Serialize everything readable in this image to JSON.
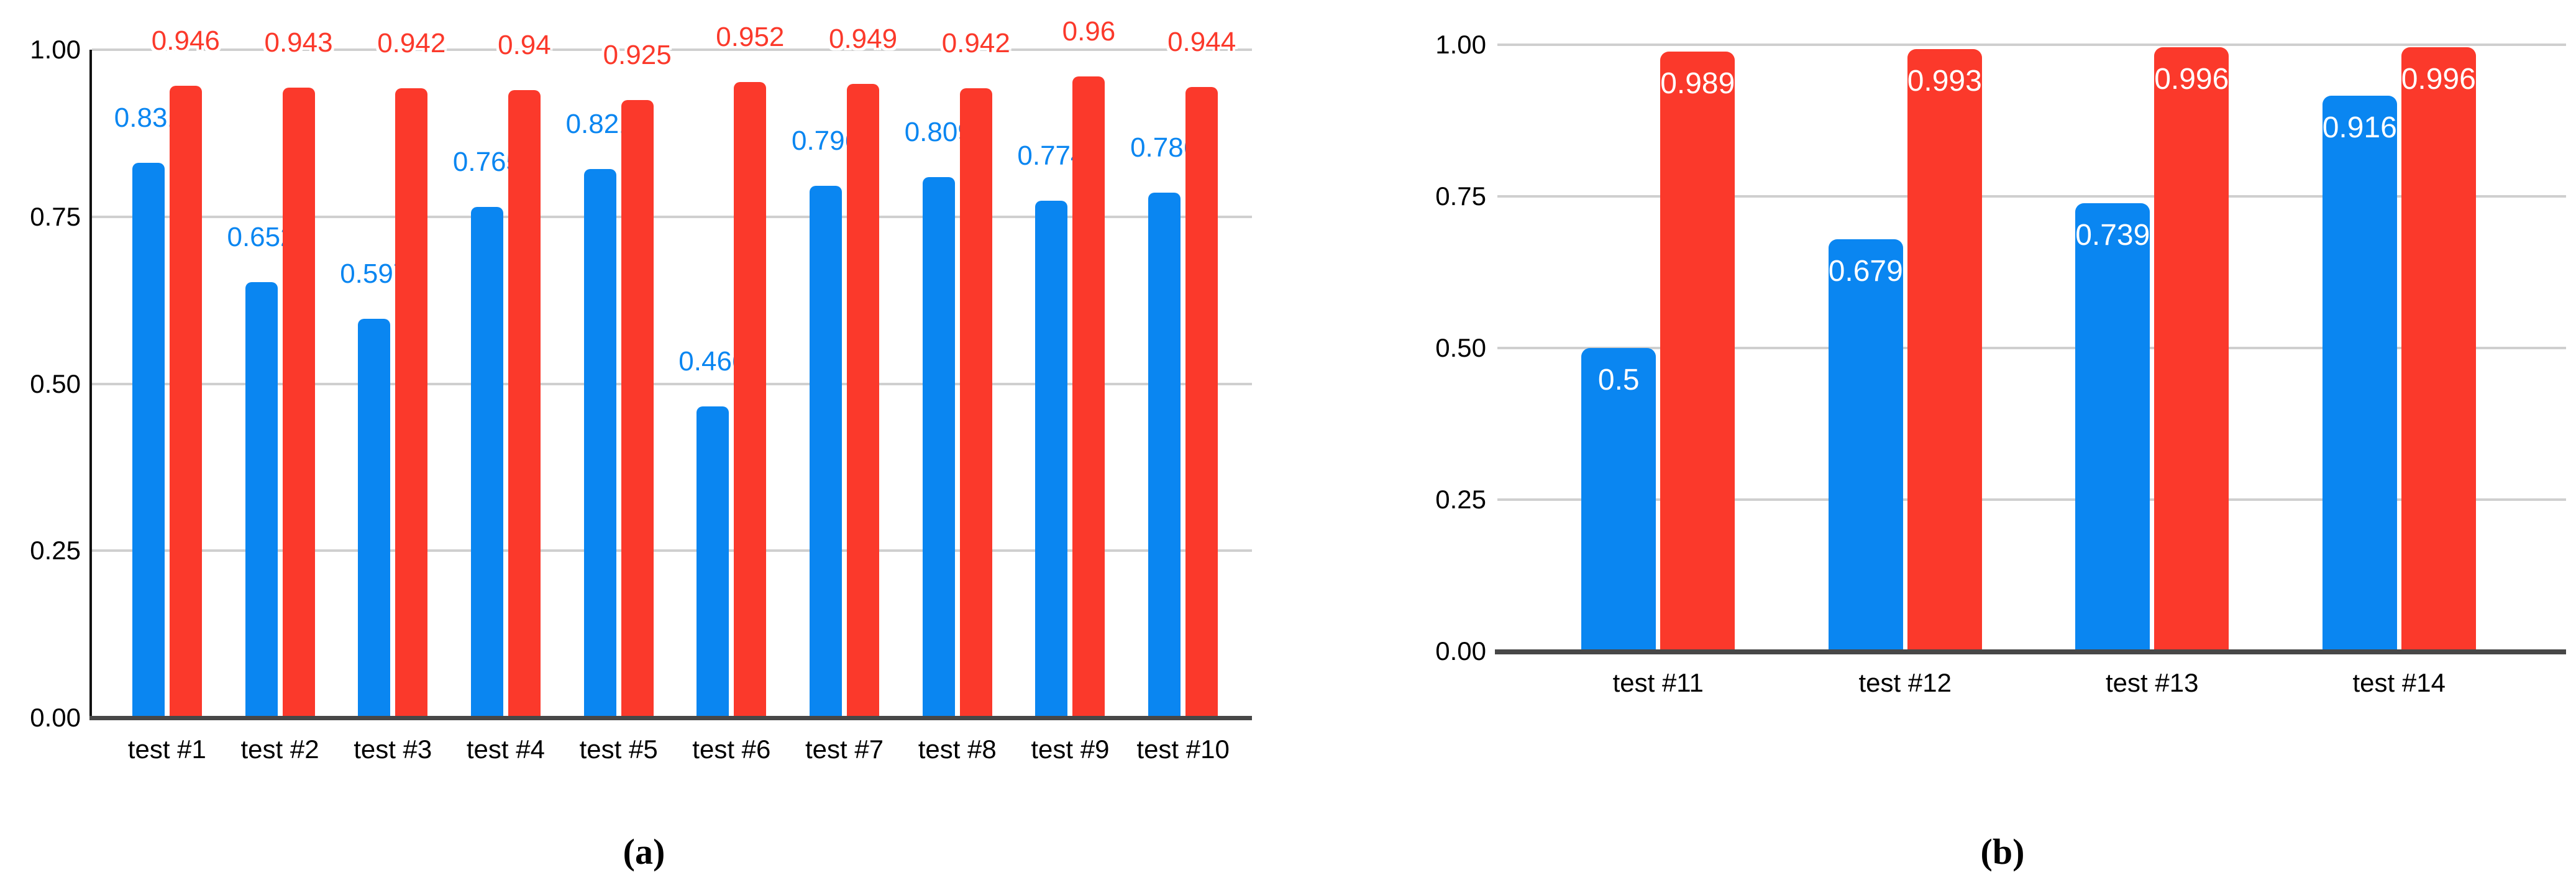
{
  "figure": {
    "background": "#ffffff"
  },
  "style": {
    "grid_color": "#cfcfcf",
    "baseline_color": "#474747",
    "axis_line_color": "#111111",
    "tick_label_color": "#000000",
    "inside_label_color": "#ffffff"
  },
  "chart_data": [
    {
      "id": "a",
      "type": "bar",
      "caption": "(a)",
      "categories": [
        "test #1",
        "test #2",
        "test #3",
        "test #4",
        "test #5",
        "test #6",
        "test #7",
        "test #8",
        "test #9",
        "test #10"
      ],
      "series": [
        {
          "name": "series-blue",
          "color": "#0a86f1",
          "values": [
            0.831,
            0.652,
            0.597,
            0.765,
            0.821,
            0.466,
            0.796,
            0.809,
            0.774,
            0.786
          ]
        },
        {
          "name": "series-red",
          "color": "#fb392b",
          "values": [
            0.946,
            0.943,
            0.942,
            0.94,
            0.925,
            0.952,
            0.949,
            0.942,
            0.96,
            0.944
          ]
        }
      ],
      "ylim": [
        0,
        1
      ],
      "yticks": [
        "1.00",
        "0.75",
        "0.50",
        "0.25",
        "0.00"
      ],
      "grid": true,
      "legend": "none",
      "y_axis_line": true,
      "value_label_position": "above_bar",
      "value_label_halo": true
    },
    {
      "id": "b",
      "type": "bar",
      "caption": "(b)",
      "categories": [
        "test #11",
        "test #12",
        "test #13",
        "test #14"
      ],
      "series": [
        {
          "name": "series-blue",
          "color": "#0a86f1",
          "values": [
            0.5,
            0.679,
            0.739,
            0.916
          ]
        },
        {
          "name": "series-red",
          "color": "#fb392b",
          "values": [
            0.989,
            0.993,
            0.996,
            0.996
          ]
        }
      ],
      "ylim": [
        0,
        1
      ],
      "yticks": [
        "1.00",
        "0.75",
        "0.50",
        "0.25",
        "0.00"
      ],
      "grid": true,
      "legend": "none",
      "y_axis_line": false,
      "value_label_position": "inside_top",
      "value_label_color": "#ffffff"
    }
  ]
}
